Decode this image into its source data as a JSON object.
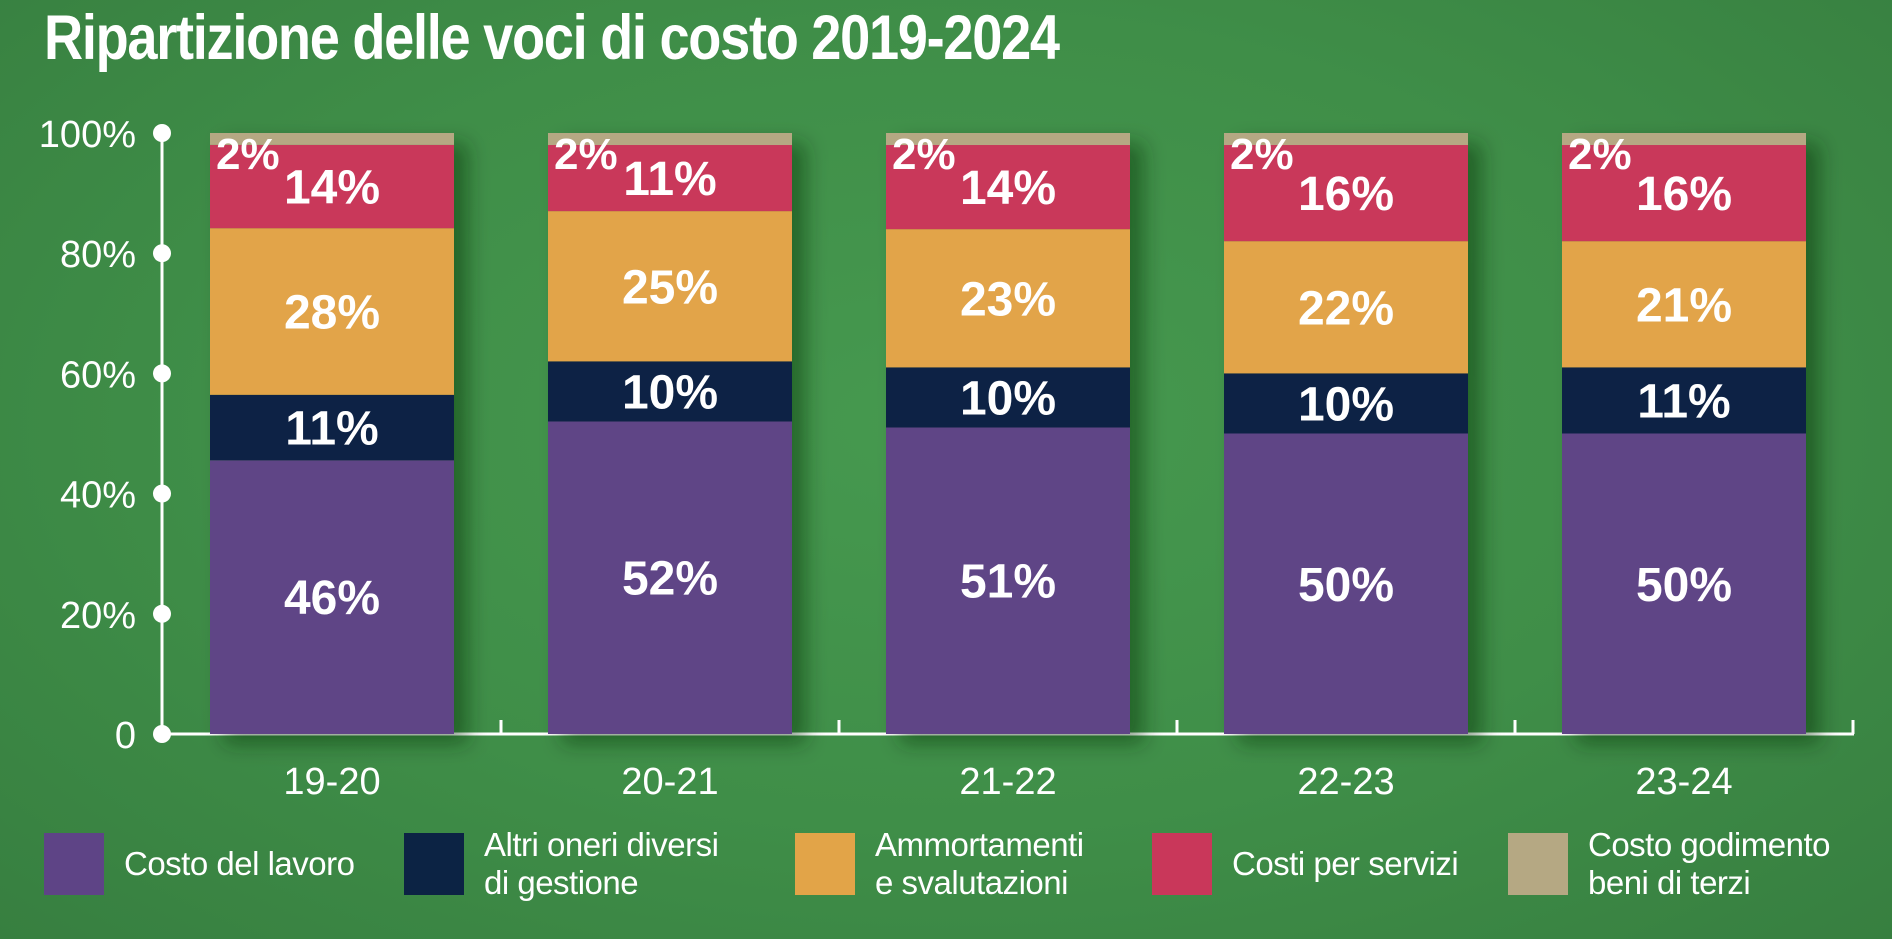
{
  "title": "Ripartizione delle voci di costo 2019-2024",
  "chart_data": {
    "type": "bar",
    "stacked": true,
    "title": "Ripartizione delle voci di costo 2019-2024",
    "categories": [
      "19-20",
      "20-21",
      "21-22",
      "22-23",
      "23-24"
    ],
    "y_ticks": [
      "100%",
      "80%",
      "60%",
      "40%",
      "20%",
      "0"
    ],
    "ylim": [
      0,
      100
    ],
    "grid": false,
    "legend_position": "bottom",
    "series": [
      {
        "name": "Costo del lavoro",
        "color": "#5e4486",
        "values": [
          46,
          52,
          51,
          50,
          50
        ],
        "labels": [
          "46%",
          "52%",
          "51%",
          "50%",
          "50%"
        ]
      },
      {
        "name": "Altri oneri diversi di gestione",
        "color": "#0c2344",
        "values": [
          11,
          10,
          10,
          10,
          11
        ],
        "labels": [
          "11%",
          "10%",
          "10%",
          "10%",
          "11%"
        ]
      },
      {
        "name": "Ammortamenti e svalutazioni",
        "color": "#e2a448",
        "values": [
          28,
          25,
          23,
          22,
          21
        ],
        "labels": [
          "28%",
          "25%",
          "23%",
          "22%",
          "21%"
        ]
      },
      {
        "name": "Costi per servizi",
        "color": "#c9375a",
        "values": [
          14,
          11,
          14,
          16,
          16
        ],
        "labels": [
          "14%",
          "11%",
          "14%",
          "16%",
          "16%"
        ]
      },
      {
        "name": "Costo godimento beni di terzi",
        "color": "#b5a883",
        "values": [
          2,
          2,
          2,
          2,
          2
        ],
        "labels": [
          "2%",
          "2%",
          "2%",
          "2%",
          "2%"
        ]
      }
    ]
  },
  "legend": [
    {
      "label": "Costo del lavoro",
      "color": "#5e4486"
    },
    {
      "label": "Altri oneri diversi\ndi gestione",
      "color": "#0c2344"
    },
    {
      "label": "Ammortamenti\ne svalutazioni",
      "color": "#e2a448"
    },
    {
      "label": "Costi per servizi",
      "color": "#c9375a"
    },
    {
      "label": "Costo godimento\nbeni di terzi",
      "color": "#b5a883"
    }
  ]
}
